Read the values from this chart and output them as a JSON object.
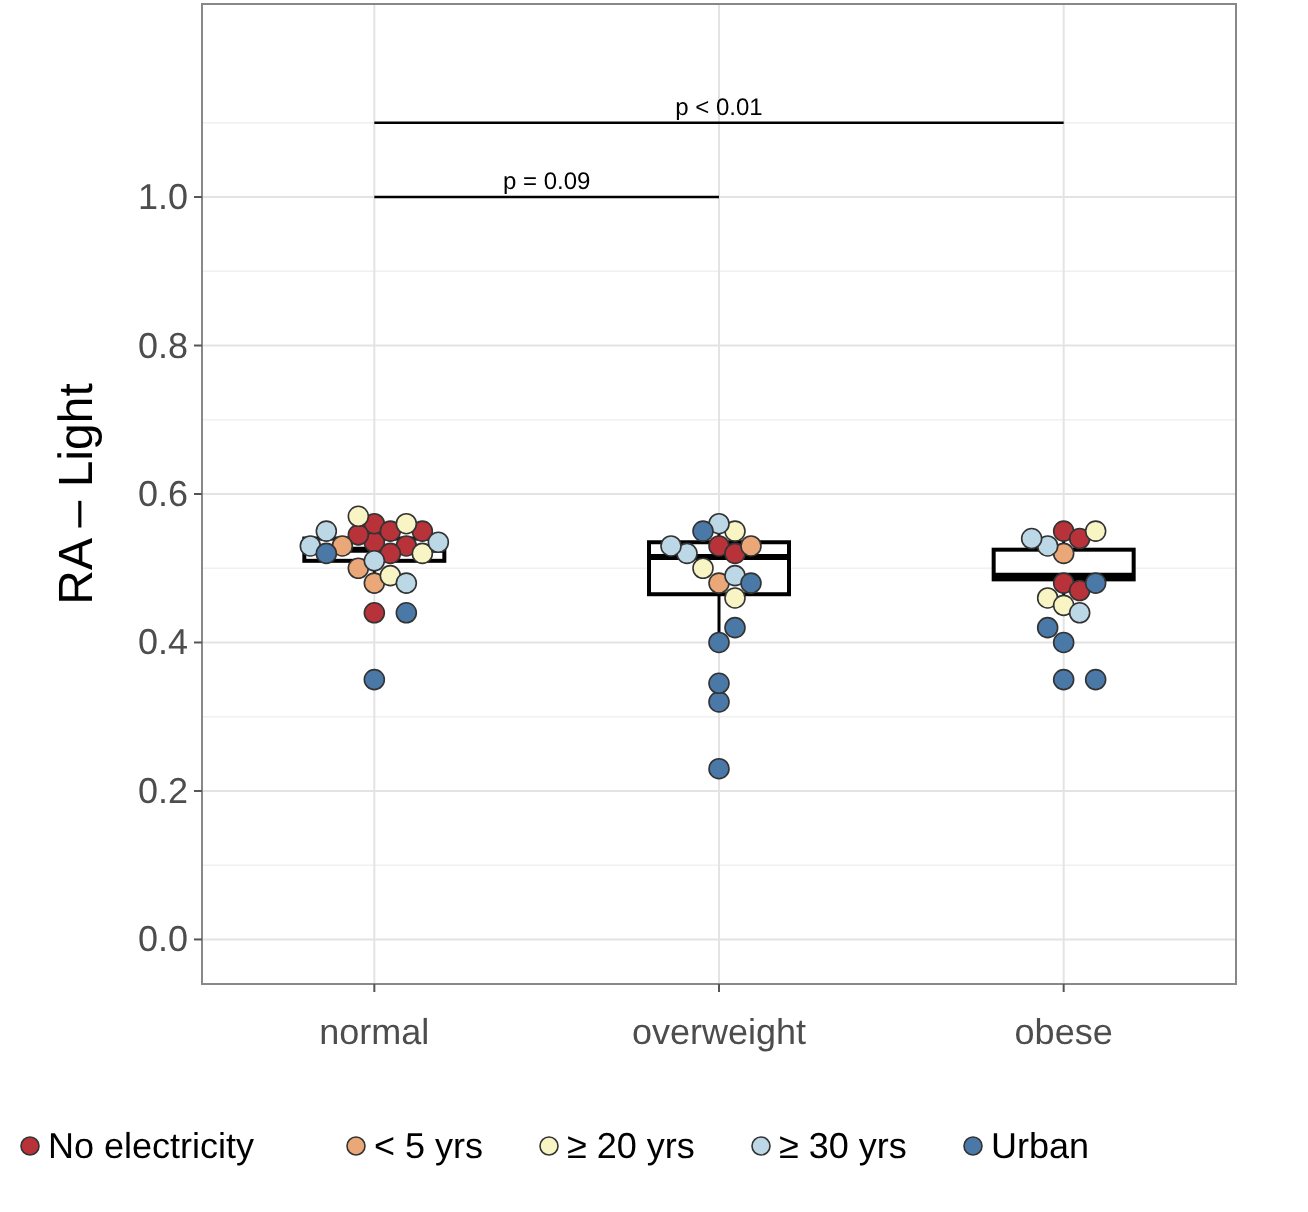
{
  "chart_data": {
    "type": "box",
    "ylabel": "RA – Light",
    "categories": [
      "normal",
      "overweight",
      "obese"
    ],
    "boxes": [
      {
        "low": 0.48,
        "q1": 0.51,
        "median": 0.525,
        "q3": 0.54,
        "high": 0.57
      },
      {
        "low": 0.4,
        "q1": 0.465,
        "median": 0.515,
        "q3": 0.535,
        "high": 0.56
      },
      {
        "low": 0.44,
        "q1": 0.485,
        "median": 0.49,
        "q3": 0.525,
        "high": 0.55
      }
    ],
    "series": [
      {
        "type": "scatter",
        "name": "No electricity",
        "color": "#b8323a",
        "x": [
          "normal",
          "normal",
          "normal",
          "normal",
          "normal",
          "normal",
          "normal",
          "normal",
          "overweight",
          "overweight",
          "obese",
          "obese",
          "obese",
          "obese"
        ],
        "values": [
          0.535,
          0.53,
          0.56,
          0.55,
          0.52,
          0.545,
          0.44,
          0.55,
          0.53,
          0.52,
          0.48,
          0.55,
          0.54,
          0.47
        ]
      },
      {
        "type": "scatter",
        "name": "< 5 yrs",
        "color": "#eaa878",
        "x": [
          "normal",
          "normal",
          "normal",
          "overweight",
          "overweight",
          "obese"
        ],
        "values": [
          0.48,
          0.5,
          0.53,
          0.48,
          0.53,
          0.52
        ]
      },
      {
        "type": "scatter",
        "name": "≥ 20 yrs",
        "color": "#f8f4c4",
        "x": [
          "normal",
          "normal",
          "normal",
          "normal",
          "overweight",
          "overweight",
          "overweight",
          "obese",
          "obese",
          "obese"
        ],
        "values": [
          0.57,
          0.56,
          0.49,
          0.52,
          0.55,
          0.46,
          0.5,
          0.55,
          0.46,
          0.45
        ]
      },
      {
        "type": "scatter",
        "name": "≥ 30 yrs",
        "color": "#bcd8e6",
        "x": [
          "normal",
          "normal",
          "normal",
          "normal",
          "normal",
          "overweight",
          "overweight",
          "overweight",
          "overweight",
          "obese",
          "obese",
          "obese"
        ],
        "values": [
          0.535,
          0.51,
          0.55,
          0.53,
          0.48,
          0.56,
          0.52,
          0.49,
          0.53,
          0.53,
          0.54,
          0.44
        ]
      },
      {
        "type": "scatter",
        "name": "Urban",
        "color": "#4a79a8",
        "x": [
          "normal",
          "normal",
          "normal",
          "overweight",
          "overweight",
          "overweight",
          "overweight",
          "overweight",
          "overweight",
          "overweight",
          "obese",
          "obese",
          "obese",
          "obese",
          "obese"
        ],
        "values": [
          0.35,
          0.44,
          0.52,
          0.23,
          0.32,
          0.345,
          0.4,
          0.42,
          0.48,
          0.55,
          0.48,
          0.4,
          0.35,
          0.35,
          0.42
        ]
      }
    ],
    "ylim": [
      -0.06,
      1.26
    ],
    "yticks": [
      {
        "value": 0,
        "label": "0.0"
      },
      0.2,
      0.4,
      0.6,
      0.8,
      {
        "value": 1,
        "label": "1.0"
      }
    ],
    "annotations": [
      "p = 0.09",
      "p < 0.01"
    ],
    "grid": true,
    "legend": "bottom",
    "marker": "circle"
  }
}
